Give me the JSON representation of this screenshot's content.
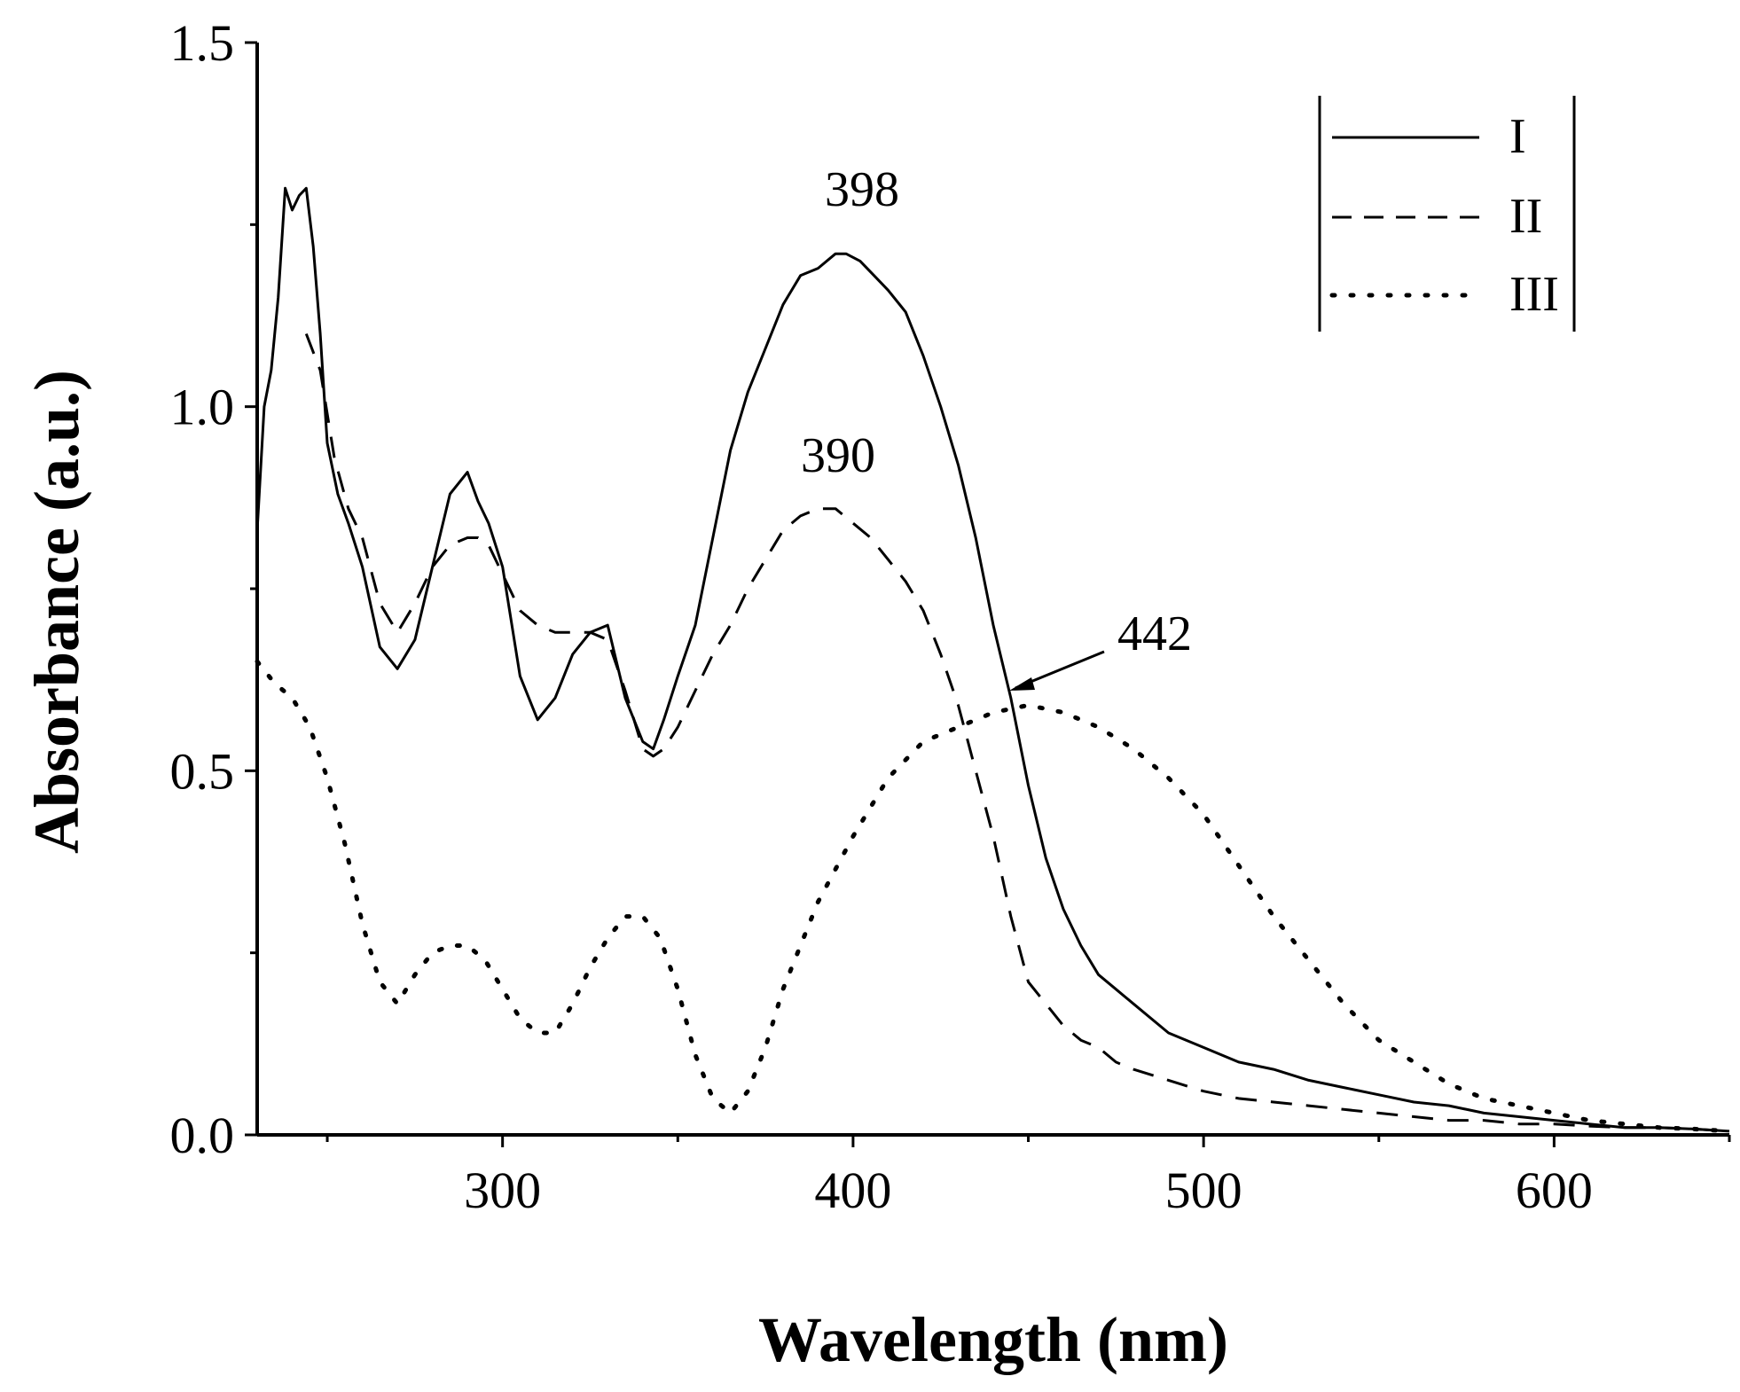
{
  "chart_data": {
    "type": "line",
    "title": "",
    "xlabel": "Wavelength (nm)",
    "ylabel": "Absorbance (a.u.)",
    "xlim": [
      230,
      650
    ],
    "ylim": [
      0.0,
      1.5
    ],
    "xticks": [
      300,
      400,
      500,
      600
    ],
    "xtick_labels": [
      "300",
      "400",
      "500",
      "600"
    ],
    "yticks": [
      0.0,
      0.5,
      1.0,
      1.5
    ],
    "ytick_labels": [
      "0.0",
      "0.5",
      "1.0",
      "1.5"
    ],
    "grid": false,
    "legend_position": "top-right",
    "series": [
      {
        "name": "I",
        "style": "solid",
        "x": [
          230,
          232,
          234,
          236,
          238,
          240,
          242,
          244,
          246,
          248,
          250,
          253,
          256,
          260,
          265,
          270,
          275,
          280,
          285,
          290,
          293,
          296,
          300,
          305,
          310,
          315,
          320,
          325,
          330,
          335,
          340,
          343,
          346,
          350,
          355,
          360,
          365,
          370,
          375,
          380,
          385,
          390,
          395,
          398,
          402,
          406,
          410,
          415,
          420,
          425,
          430,
          435,
          440,
          445,
          450,
          455,
          460,
          465,
          470,
          475,
          480,
          490,
          500,
          510,
          520,
          530,
          540,
          550,
          560,
          570,
          580,
          590,
          600,
          610,
          620,
          630,
          640,
          650
        ],
        "y": [
          0.83,
          1.0,
          1.05,
          1.15,
          1.3,
          1.27,
          1.29,
          1.3,
          1.22,
          1.1,
          0.95,
          0.88,
          0.84,
          0.78,
          0.67,
          0.64,
          0.68,
          0.78,
          0.88,
          0.91,
          0.87,
          0.84,
          0.78,
          0.63,
          0.57,
          0.6,
          0.66,
          0.69,
          0.7,
          0.6,
          0.54,
          0.53,
          0.57,
          0.63,
          0.7,
          0.82,
          0.94,
          1.02,
          1.08,
          1.14,
          1.18,
          1.19,
          1.21,
          1.21,
          1.2,
          1.18,
          1.16,
          1.13,
          1.07,
          1.0,
          0.92,
          0.82,
          0.7,
          0.6,
          0.48,
          0.38,
          0.31,
          0.26,
          0.22,
          0.2,
          0.18,
          0.14,
          0.12,
          0.1,
          0.09,
          0.075,
          0.065,
          0.055,
          0.045,
          0.04,
          0.03,
          0.025,
          0.02,
          0.015,
          0.01,
          0.01,
          0.008,
          0.005
        ]
      },
      {
        "name": "II",
        "style": "dashed",
        "x": [
          244,
          248,
          252,
          256,
          260,
          265,
          270,
          275,
          280,
          285,
          290,
          293,
          296,
          300,
          305,
          310,
          315,
          320,
          325,
          330,
          335,
          340,
          343,
          346,
          350,
          355,
          360,
          365,
          370,
          375,
          380,
          385,
          390,
          395,
          400,
          405,
          410,
          415,
          420,
          425,
          430,
          435,
          440,
          445,
          450,
          455,
          460,
          465,
          470,
          475,
          480,
          490,
          500,
          510,
          520,
          530,
          540,
          550,
          560,
          570,
          580,
          590,
          600,
          610,
          620,
          630,
          640,
          650
        ],
        "y": [
          1.1,
          1.05,
          0.93,
          0.86,
          0.82,
          0.73,
          0.69,
          0.73,
          0.78,
          0.81,
          0.82,
          0.82,
          0.81,
          0.77,
          0.72,
          0.7,
          0.69,
          0.69,
          0.69,
          0.68,
          0.61,
          0.53,
          0.52,
          0.53,
          0.56,
          0.61,
          0.66,
          0.7,
          0.75,
          0.79,
          0.83,
          0.85,
          0.86,
          0.86,
          0.84,
          0.82,
          0.79,
          0.76,
          0.72,
          0.66,
          0.59,
          0.5,
          0.41,
          0.3,
          0.21,
          0.18,
          0.15,
          0.13,
          0.12,
          0.1,
          0.09,
          0.075,
          0.06,
          0.05,
          0.045,
          0.04,
          0.035,
          0.03,
          0.025,
          0.02,
          0.02,
          0.015,
          0.015,
          0.012,
          0.01,
          0.01,
          0.008,
          0.005
        ]
      },
      {
        "name": "III",
        "style": "dotted",
        "x": [
          230,
          235,
          240,
          245,
          250,
          255,
          260,
          265,
          270,
          275,
          280,
          285,
          290,
          295,
          300,
          305,
          310,
          315,
          320,
          325,
          330,
          335,
          340,
          345,
          350,
          355,
          360,
          365,
          370,
          375,
          380,
          390,
          400,
          410,
          420,
          430,
          440,
          450,
          460,
          470,
          480,
          490,
          500,
          510,
          520,
          530,
          540,
          550,
          560,
          570,
          580,
          590,
          600,
          610,
          620,
          630,
          640,
          650
        ],
        "y": [
          0.65,
          0.62,
          0.6,
          0.56,
          0.49,
          0.4,
          0.29,
          0.21,
          0.18,
          0.22,
          0.25,
          0.26,
          0.26,
          0.24,
          0.2,
          0.16,
          0.14,
          0.14,
          0.18,
          0.23,
          0.27,
          0.3,
          0.3,
          0.27,
          0.2,
          0.11,
          0.05,
          0.03,
          0.06,
          0.12,
          0.2,
          0.32,
          0.41,
          0.49,
          0.54,
          0.56,
          0.58,
          0.59,
          0.58,
          0.56,
          0.53,
          0.49,
          0.44,
          0.37,
          0.3,
          0.24,
          0.18,
          0.13,
          0.1,
          0.07,
          0.05,
          0.04,
          0.03,
          0.02,
          0.015,
          0.01,
          0.008,
          0.005
        ]
      }
    ],
    "legend_labels": [
      "I",
      "II",
      "III"
    ],
    "annotations": [
      {
        "text": "398",
        "x": 398,
        "y": 1.26
      },
      {
        "text": "390",
        "x": 390,
        "y": 0.9
      },
      {
        "text": "442",
        "x": 442,
        "y": 0.62
      }
    ]
  }
}
